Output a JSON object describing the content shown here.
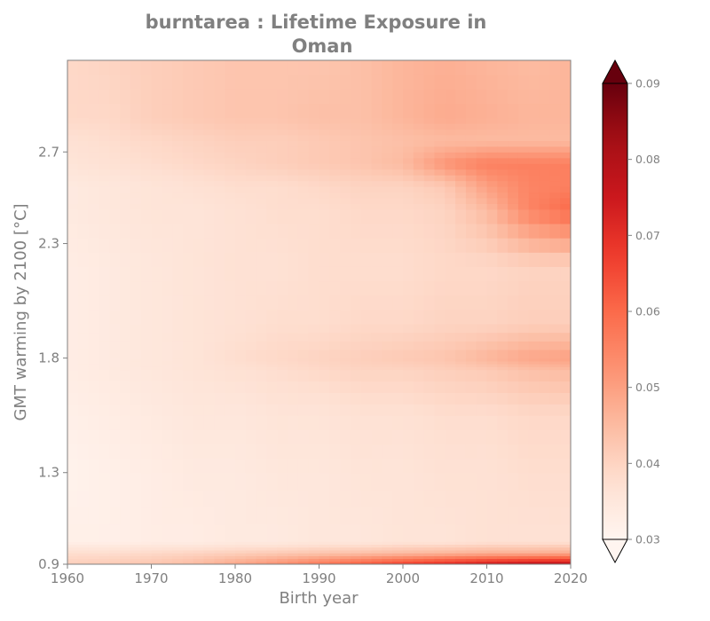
{
  "chart_data": {
    "type": "heatmap",
    "title_line1": "burntarea : Lifetime Exposure in",
    "title_line2": "Oman",
    "xlabel": "Birth year",
    "ylabel": "GMT warming by 2100 [°C]",
    "xlim": [
      1960,
      2020
    ],
    "ylim": [
      0.9,
      3.1
    ],
    "x_ticks": [
      "1960",
      "1970",
      "1980",
      "1990",
      "2000",
      "2010",
      "2020"
    ],
    "y_ticks": [
      "0.9",
      "1.3",
      "1.8",
      "2.3",
      "2.7"
    ],
    "y_tick_values": [
      0.9,
      1.3,
      1.8,
      2.3,
      2.7
    ],
    "colorbar": {
      "colormap": "Reds",
      "min": 0.03,
      "max": 0.09,
      "extend": "both",
      "ticks": [
        "0.03",
        "0.04",
        "0.05",
        "0.06",
        "0.07",
        "0.08",
        "0.09"
      ],
      "tick_values": [
        0.03,
        0.04,
        0.05,
        0.06,
        0.07,
        0.08,
        0.09
      ]
    },
    "x": [
      1960,
      1965,
      1970,
      1975,
      1980,
      1985,
      1990,
      1995,
      2000,
      2005,
      2010,
      2015,
      2020
    ],
    "y": [
      0.9,
      0.95,
      1.0,
      1.3,
      1.55,
      1.75,
      1.8,
      1.95,
      2.2,
      2.45,
      2.55,
      2.65,
      2.75,
      2.85,
      3.1
    ],
    "z": [
      [
        0.041,
        0.042,
        0.043,
        0.045,
        0.049,
        0.053,
        0.058,
        0.063,
        0.068,
        0.072,
        0.076,
        0.079,
        0.08
      ],
      [
        0.038,
        0.038,
        0.039,
        0.04,
        0.041,
        0.042,
        0.043,
        0.044,
        0.045,
        0.046,
        0.047,
        0.047,
        0.048
      ],
      [
        0.032,
        0.032,
        0.033,
        0.033,
        0.034,
        0.034,
        0.035,
        0.035,
        0.036,
        0.036,
        0.037,
        0.037,
        0.037
      ],
      [
        0.031,
        0.032,
        0.033,
        0.034,
        0.034,
        0.035,
        0.035,
        0.036,
        0.036,
        0.037,
        0.037,
        0.038,
        0.038
      ],
      [
        0.032,
        0.033,
        0.034,
        0.035,
        0.035,
        0.036,
        0.036,
        0.037,
        0.037,
        0.038,
        0.038,
        0.039,
        0.039
      ],
      [
        0.033,
        0.034,
        0.035,
        0.036,
        0.037,
        0.038,
        0.039,
        0.04,
        0.04,
        0.041,
        0.042,
        0.044,
        0.045
      ],
      [
        0.033,
        0.034,
        0.035,
        0.036,
        0.038,
        0.039,
        0.04,
        0.041,
        0.042,
        0.043,
        0.046,
        0.049,
        0.05
      ],
      [
        0.033,
        0.034,
        0.035,
        0.036,
        0.037,
        0.038,
        0.038,
        0.039,
        0.039,
        0.04,
        0.04,
        0.041,
        0.041
      ],
      [
        0.033,
        0.034,
        0.035,
        0.036,
        0.037,
        0.037,
        0.038,
        0.038,
        0.038,
        0.039,
        0.039,
        0.04,
        0.04
      ],
      [
        0.034,
        0.035,
        0.036,
        0.036,
        0.037,
        0.038,
        0.038,
        0.039,
        0.039,
        0.04,
        0.045,
        0.055,
        0.06
      ],
      [
        0.034,
        0.035,
        0.036,
        0.037,
        0.038,
        0.038,
        0.039,
        0.04,
        0.04,
        0.042,
        0.05,
        0.055,
        0.056
      ],
      [
        0.036,
        0.037,
        0.038,
        0.039,
        0.04,
        0.041,
        0.042,
        0.043,
        0.045,
        0.052,
        0.056,
        0.056,
        0.056
      ],
      [
        0.037,
        0.038,
        0.039,
        0.04,
        0.041,
        0.041,
        0.042,
        0.043,
        0.044,
        0.045,
        0.045,
        0.045,
        0.045
      ],
      [
        0.039,
        0.039,
        0.041,
        0.042,
        0.043,
        0.043,
        0.044,
        0.044,
        0.046,
        0.048,
        0.047,
        0.046,
        0.046
      ],
      [
        0.039,
        0.04,
        0.041,
        0.042,
        0.043,
        0.043,
        0.043,
        0.044,
        0.046,
        0.047,
        0.046,
        0.045,
        0.046
      ]
    ]
  }
}
